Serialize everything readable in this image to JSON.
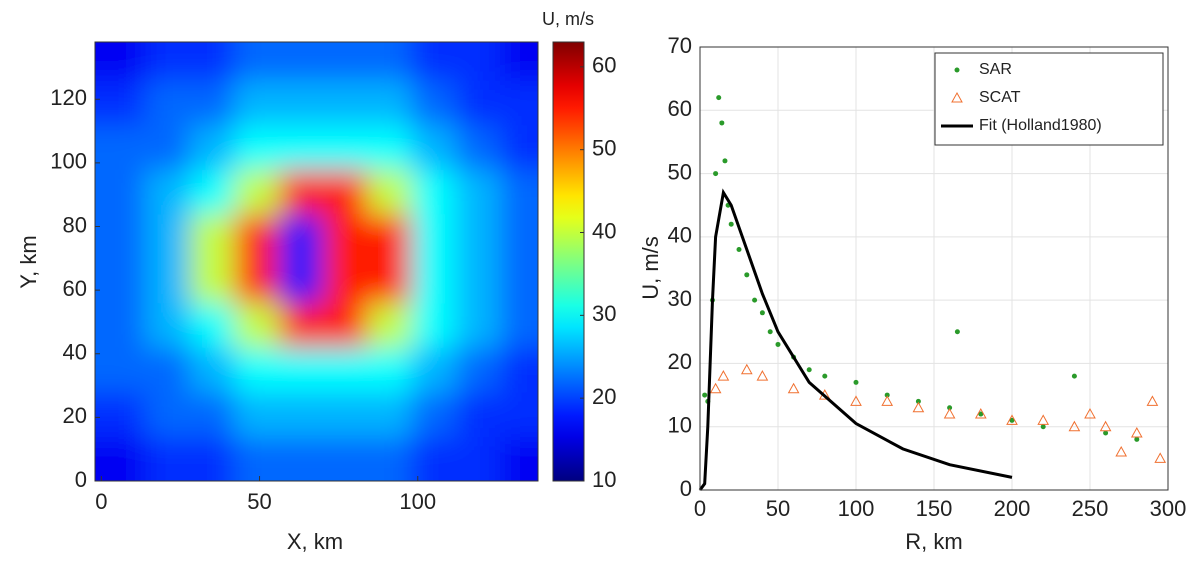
{
  "chart_data": [
    {
      "type": "heatmap",
      "colorbar_title": "U, m/s",
      "xlabel": "X, km",
      "ylabel": "Y, km",
      "x": [
        7,
        21,
        35,
        49,
        63,
        77,
        91,
        105,
        119,
        133
      ],
      "y": [
        7,
        21,
        35,
        49,
        63,
        77,
        91,
        105,
        119,
        133
      ],
      "z": [
        [
          16,
          19,
          19,
          22,
          22,
          22,
          22,
          19,
          19,
          16
        ],
        [
          19,
          22,
          22,
          26,
          26,
          26,
          26,
          22,
          19,
          19
        ],
        [
          22,
          22,
          26,
          30,
          30,
          30,
          30,
          26,
          22,
          19
        ],
        [
          22,
          26,
          30,
          40,
          55,
          55,
          40,
          30,
          26,
          22
        ],
        [
          22,
          26,
          40,
          55,
          18,
          55,
          55,
          30,
          26,
          22
        ],
        [
          22,
          26,
          40,
          55,
          18,
          55,
          55,
          30,
          26,
          22
        ],
        [
          22,
          26,
          30,
          40,
          55,
          55,
          40,
          30,
          26,
          22
        ],
        [
          22,
          22,
          26,
          30,
          30,
          30,
          30,
          26,
          22,
          19
        ],
        [
          19,
          22,
          22,
          26,
          26,
          26,
          26,
          22,
          19,
          19
        ],
        [
          16,
          19,
          19,
          22,
          22,
          22,
          22,
          19,
          19,
          16
        ]
      ],
      "xlim": [
        -2,
        138
      ],
      "ylim": [
        0,
        138
      ],
      "xticks": [
        0,
        50,
        100
      ],
      "yticks": [
        0,
        20,
        40,
        60,
        80,
        100,
        120
      ],
      "clim": [
        10,
        63
      ],
      "cticks": [
        10,
        20,
        30,
        40,
        50,
        60
      ],
      "colormap": "jet"
    },
    {
      "type": "scatter",
      "xlabel": "R, km",
      "ylabel": "U, m/s",
      "legend": "upper right",
      "grid": true,
      "xlim": [
        0,
        300
      ],
      "ylim": [
        0,
        70
      ],
      "xticks": [
        0,
        50,
        100,
        150,
        200,
        250,
        300
      ],
      "yticks": [
        0,
        10,
        20,
        30,
        40,
        50,
        60,
        70
      ],
      "series": [
        {
          "name": "SAR",
          "color": "#2a9a2a",
          "marker": "dot",
          "x": [
            3,
            5,
            8,
            10,
            12,
            14,
            16,
            18,
            20,
            25,
            30,
            35,
            40,
            45,
            50,
            60,
            70,
            80,
            100,
            120,
            140,
            160,
            165,
            180,
            200,
            220,
            240,
            260,
            280
          ],
          "values": [
            15,
            14,
            30,
            50,
            62,
            58,
            52,
            45,
            42,
            38,
            34,
            30,
            28,
            25,
            23,
            21,
            19,
            18,
            17,
            15,
            14,
            13,
            25,
            12,
            11,
            10,
            18,
            9,
            8
          ]
        },
        {
          "name": "SCAT",
          "color": "#f07030",
          "marker": "triangle",
          "x": [
            10,
            15,
            30,
            40,
            60,
            80,
            100,
            120,
            140,
            160,
            180,
            200,
            220,
            240,
            260,
            280,
            290,
            295,
            270,
            250
          ],
          "values": [
            16,
            18,
            19,
            18,
            16,
            15,
            14,
            14,
            13,
            12,
            12,
            11,
            11,
            10,
            10,
            9,
            14,
            5,
            6,
            12
          ]
        },
        {
          "name": "Fit (Holland1980)",
          "color": "#000000",
          "marker": "line",
          "x": [
            0,
            3,
            5,
            8,
            10,
            15,
            20,
            30,
            40,
            50,
            70,
            100,
            130,
            160,
            200
          ],
          "values": [
            0,
            1,
            10,
            30,
            40,
            47,
            45,
            38,
            31,
            25,
            17,
            10.5,
            6.5,
            4,
            2
          ]
        }
      ]
    }
  ]
}
